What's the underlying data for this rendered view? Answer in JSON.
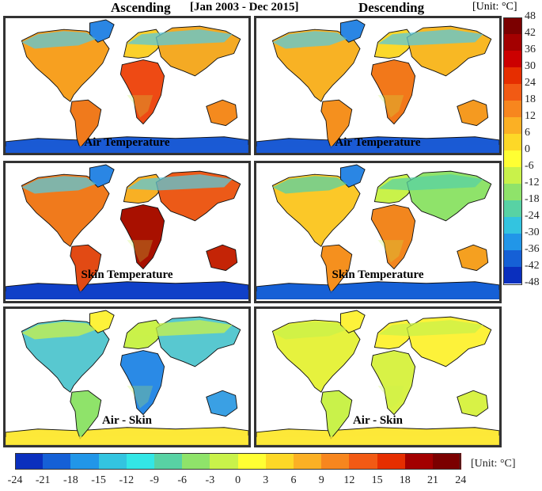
{
  "header": {
    "ascending": "Ascending",
    "period": "[Jan 2003 - Dec 2015]",
    "descending": "Descending",
    "unit_top": "[Unit: °C]",
    "unit_bottom": "[Unit: °C]"
  },
  "panels": [
    {
      "label": "Air Temperature",
      "orbit": "Ascending",
      "theme": "air_asc"
    },
    {
      "label": "Air Temperature",
      "orbit": "Descending",
      "theme": "air_desc"
    },
    {
      "label": "Skin Temperature",
      "orbit": "Ascending",
      "theme": "skin_asc"
    },
    {
      "label": "Skin Temperature",
      "orbit": "Descending",
      "theme": "skin_desc"
    },
    {
      "label": "Air - Skin",
      "orbit": "Ascending",
      "theme": "diff_asc"
    },
    {
      "label": "Air - Skin",
      "orbit": "Descending",
      "theme": "diff_desc"
    }
  ],
  "colorbar_vertical": {
    "ticks": [
      "48",
      "42",
      "36",
      "30",
      "24",
      "18",
      "12",
      "6",
      "0",
      "-6",
      "-12",
      "-18",
      "-24",
      "-30",
      "-36",
      "-42",
      "-48"
    ],
    "colors": [
      "#7b0000",
      "#a30000",
      "#cc0000",
      "#e62e00",
      "#f25a14",
      "#f7861e",
      "#fbb024",
      "#fdd827",
      "#ffff33",
      "#c9f24a",
      "#8fe36a",
      "#58d2a4",
      "#33c4e0",
      "#2196e8",
      "#1560d6",
      "#0a2fbe"
    ]
  },
  "colorbar_horizontal": {
    "ticks": [
      "-24",
      "-21",
      "-18",
      "-15",
      "-12",
      "-9",
      "-6",
      "-3",
      "0",
      "3",
      "6",
      "9",
      "12",
      "15",
      "18",
      "21",
      "24"
    ],
    "colors": [
      "#0a2fbe",
      "#1560d6",
      "#2196e8",
      "#33c4e0",
      "#33e6e6",
      "#58d2a4",
      "#8fe36a",
      "#c9f24a",
      "#ffff33",
      "#fdd827",
      "#fbb024",
      "#f7861e",
      "#f25a14",
      "#e62e00",
      "#a30000",
      "#7b0000"
    ]
  },
  "themes": {
    "air_asc": {
      "na": "#f7a020",
      "sa": "#f07a1c",
      "eur": "#fbd02a",
      "af": "#ee4a14",
      "asia": "#f4aa24",
      "oz": "#f48a1e",
      "arctic": "#5cc8d8",
      "greenland": "#2a86e4",
      "ant": "#1a5ad4",
      "band": "#c9f24a"
    },
    "air_desc": {
      "na": "#f8b224",
      "sa": "#f5901e",
      "eur": "#fbd82a",
      "af": "#f2781a",
      "asia": "#f8b824",
      "oz": "#f59a20",
      "arctic": "#5cc8d8",
      "greenland": "#2a86e4",
      "ant": "#1a5ad4",
      "band": "#c9f24a"
    },
    "skin_asc": {
      "na": "#f07a1c",
      "sa": "#e24a14",
      "eur": "#f8b024",
      "af": "#a81000",
      "asia": "#ec5a18",
      "oz": "#c42406",
      "arctic": "#5cc8d8",
      "greenland": "#2a86e4",
      "ant": "#1040c8",
      "band": "#c9f24a"
    },
    "skin_desc": {
      "na": "#fbc828",
      "sa": "#f5901e",
      "eur": "#c9f24a",
      "af": "#f2861e",
      "asia": "#8fe36a",
      "oz": "#f5a020",
      "arctic": "#58d2a4",
      "greenland": "#2a86e4",
      "ant": "#1560d6",
      "band": "#c9f24a"
    },
    "diff_asc": {
      "na": "#58c8d0",
      "sa": "#8fe36a",
      "eur": "#c9f24a",
      "af": "#2a8ae6",
      "asia": "#58c8d0",
      "oz": "#3aa0e4",
      "arctic": "#c9f24a",
      "greenland": "#fdf23a",
      "ant": "#fde838",
      "band": "#c9f24a"
    },
    "diff_desc": {
      "na": "#e6f23e",
      "sa": "#c9f24a",
      "eur": "#fdf23a",
      "af": "#d8f246",
      "asia": "#fdf23a",
      "oz": "#d8f246",
      "arctic": "#c9f24a",
      "greenland": "#fdf23a",
      "ant": "#fde838",
      "band": "#c9f24a"
    }
  }
}
